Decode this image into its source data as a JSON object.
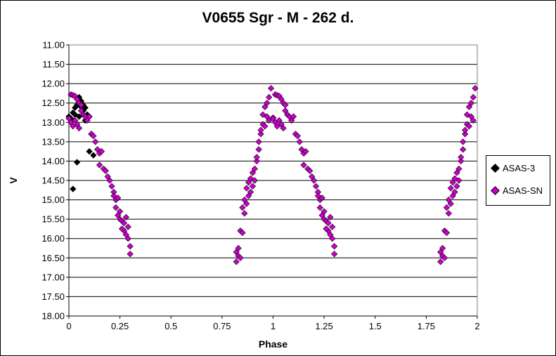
{
  "chart_data": {
    "type": "scatter",
    "title": "V0655 Sgr - M - 262 d.",
    "xlabel": "Phase",
    "ylabel": "V",
    "xlim": [
      0,
      2
    ],
    "ylim": [
      11.0,
      18.0
    ],
    "y_inverted": true,
    "x_ticks": [
      "0",
      "0.25",
      "0.5",
      "0.75",
      "1",
      "1.25",
      "1.5",
      "1.75",
      "2"
    ],
    "y_ticks": [
      "11.00",
      "11.50",
      "12.00",
      "12.50",
      "13.00",
      "13.50",
      "14.00",
      "14.50",
      "15.00",
      "15.50",
      "16.00",
      "16.50",
      "17.00",
      "17.50",
      "18.00"
    ],
    "grid": "horizontal",
    "legend_position": "right",
    "series": [
      {
        "name": "ASAS-3",
        "color": "#000000",
        "marker": "diamond",
        "points": [
          [
            0.0,
            12.85
          ],
          [
            0.01,
            12.9
          ],
          [
            0.02,
            12.75
          ],
          [
            0.03,
            12.62
          ],
          [
            0.03,
            12.8
          ],
          [
            0.04,
            12.55
          ],
          [
            0.04,
            12.4
          ],
          [
            0.05,
            12.35
          ],
          [
            0.05,
            12.48
          ],
          [
            0.06,
            12.6
          ],
          [
            0.06,
            12.45
          ],
          [
            0.07,
            12.55
          ],
          [
            0.07,
            12.7
          ],
          [
            0.08,
            12.62
          ],
          [
            0.09,
            12.8
          ],
          [
            0.1,
            12.85
          ],
          [
            0.05,
            12.85
          ],
          [
            0.08,
            12.95
          ],
          [
            0.1,
            13.75
          ],
          [
            0.12,
            13.85
          ],
          [
            0.11,
            13.3
          ],
          [
            0.04,
            14.03
          ],
          [
            0.02,
            14.72
          ],
          [
            0.01,
            13.0
          ]
        ]
      },
      {
        "name": "ASAS-SN",
        "color": "#CC00CC",
        "marker": "diamond",
        "points": [
          [
            0.0,
            12.9
          ],
          [
            0.01,
            12.28
          ],
          [
            0.01,
            13.0
          ],
          [
            0.02,
            13.1
          ],
          [
            0.02,
            12.3
          ],
          [
            0.03,
            12.32
          ],
          [
            0.03,
            12.95
          ],
          [
            0.04,
            12.4
          ],
          [
            0.04,
            13.05
          ],
          [
            0.05,
            12.5
          ],
          [
            0.05,
            13.15
          ],
          [
            0.06,
            12.55
          ],
          [
            0.06,
            12.7
          ],
          [
            0.07,
            12.8
          ],
          [
            0.08,
            12.85
          ],
          [
            0.09,
            12.95
          ],
          [
            0.1,
            12.85
          ],
          [
            0.11,
            13.3
          ],
          [
            0.12,
            13.35
          ],
          [
            0.13,
            13.5
          ],
          [
            0.14,
            13.7
          ],
          [
            0.15,
            13.8
          ],
          [
            0.15,
            14.1
          ],
          [
            0.16,
            13.75
          ],
          [
            0.17,
            14.2
          ],
          [
            0.18,
            14.25
          ],
          [
            0.19,
            14.4
          ],
          [
            0.2,
            14.5
          ],
          [
            0.21,
            14.65
          ],
          [
            0.22,
            14.8
          ],
          [
            0.22,
            14.9
          ],
          [
            0.23,
            15.0
          ],
          [
            0.23,
            15.2
          ],
          [
            0.24,
            14.95
          ],
          [
            0.24,
            15.4
          ],
          [
            0.25,
            15.5
          ],
          [
            0.25,
            15.3
          ],
          [
            0.26,
            15.55
          ],
          [
            0.27,
            15.6
          ],
          [
            0.27,
            15.8
          ],
          [
            0.28,
            15.45
          ],
          [
            0.28,
            15.9
          ],
          [
            0.29,
            16.0
          ],
          [
            0.29,
            15.7
          ],
          [
            0.3,
            16.2
          ],
          [
            0.3,
            16.4
          ],
          [
            0.26,
            15.75
          ],
          [
            0.82,
            16.6
          ],
          [
            0.82,
            16.35
          ],
          [
            0.83,
            16.45
          ],
          [
            0.83,
            16.25
          ],
          [
            0.84,
            16.5
          ],
          [
            0.84,
            15.8
          ],
          [
            0.85,
            15.85
          ],
          [
            0.85,
            15.2
          ],
          [
            0.86,
            15.0
          ],
          [
            0.86,
            15.35
          ],
          [
            0.87,
            14.7
          ],
          [
            0.87,
            15.1
          ],
          [
            0.88,
            14.55
          ],
          [
            0.88,
            14.9
          ],
          [
            0.89,
            14.45
          ],
          [
            0.89,
            14.8
          ],
          [
            0.9,
            14.3
          ],
          [
            0.9,
            14.65
          ],
          [
            0.91,
            14.5
          ],
          [
            0.91,
            14.2
          ],
          [
            0.92,
            14.0
          ],
          [
            0.92,
            13.9
          ],
          [
            0.93,
            13.7
          ],
          [
            0.93,
            13.5
          ],
          [
            0.94,
            13.3
          ],
          [
            0.94,
            13.2
          ],
          [
            0.95,
            13.05
          ],
          [
            0.95,
            12.8
          ],
          [
            0.96,
            12.6
          ],
          [
            0.96,
            13.1
          ],
          [
            0.97,
            12.5
          ],
          [
            0.97,
            12.85
          ],
          [
            0.98,
            12.35
          ],
          [
            0.98,
            12.95
          ],
          [
            0.99,
            12.12
          ],
          [
            1.0,
            12.88
          ],
          [
            1.0,
            12.9
          ],
          [
            1.01,
            12.28
          ],
          [
            1.01,
            13.0
          ],
          [
            1.02,
            13.1
          ],
          [
            1.02,
            12.3
          ],
          [
            1.03,
            12.32
          ],
          [
            1.03,
            12.95
          ],
          [
            1.04,
            12.4
          ],
          [
            1.04,
            13.05
          ],
          [
            1.05,
            12.5
          ],
          [
            1.05,
            13.15
          ],
          [
            1.06,
            12.55
          ],
          [
            1.06,
            12.7
          ],
          [
            1.07,
            12.8
          ],
          [
            1.08,
            12.85
          ],
          [
            1.09,
            12.95
          ],
          [
            1.1,
            12.85
          ],
          [
            1.11,
            13.3
          ],
          [
            1.12,
            13.35
          ],
          [
            1.13,
            13.5
          ],
          [
            1.14,
            13.7
          ],
          [
            1.15,
            13.8
          ],
          [
            1.15,
            14.1
          ],
          [
            1.16,
            13.75
          ],
          [
            1.17,
            14.2
          ],
          [
            1.18,
            14.25
          ],
          [
            1.19,
            14.4
          ],
          [
            1.2,
            14.5
          ],
          [
            1.21,
            14.65
          ],
          [
            1.22,
            14.8
          ],
          [
            1.22,
            14.9
          ],
          [
            1.23,
            15.0
          ],
          [
            1.23,
            15.2
          ],
          [
            1.24,
            14.95
          ],
          [
            1.24,
            15.4
          ],
          [
            1.25,
            15.5
          ],
          [
            1.25,
            15.3
          ],
          [
            1.26,
            15.55
          ],
          [
            1.27,
            15.6
          ],
          [
            1.27,
            15.8
          ],
          [
            1.28,
            15.45
          ],
          [
            1.28,
            15.9
          ],
          [
            1.29,
            16.0
          ],
          [
            1.29,
            15.7
          ],
          [
            1.3,
            16.2
          ],
          [
            1.3,
            16.4
          ],
          [
            1.26,
            15.75
          ],
          [
            1.82,
            16.6
          ],
          [
            1.82,
            16.35
          ],
          [
            1.83,
            16.45
          ],
          [
            1.83,
            16.25
          ],
          [
            1.84,
            16.5
          ],
          [
            1.84,
            15.8
          ],
          [
            1.85,
            15.85
          ],
          [
            1.85,
            15.2
          ],
          [
            1.86,
            15.0
          ],
          [
            1.86,
            15.35
          ],
          [
            1.87,
            14.7
          ],
          [
            1.87,
            15.1
          ],
          [
            1.88,
            14.55
          ],
          [
            1.88,
            14.9
          ],
          [
            1.89,
            14.45
          ],
          [
            1.89,
            14.8
          ],
          [
            1.9,
            14.3
          ],
          [
            1.9,
            14.65
          ],
          [
            1.91,
            14.5
          ],
          [
            1.91,
            14.2
          ],
          [
            1.92,
            14.0
          ],
          [
            1.92,
            13.9
          ],
          [
            1.93,
            13.7
          ],
          [
            1.93,
            13.5
          ],
          [
            1.94,
            13.3
          ],
          [
            1.94,
            13.2
          ],
          [
            1.95,
            13.05
          ],
          [
            1.95,
            12.8
          ],
          [
            1.96,
            12.6
          ],
          [
            1.96,
            13.1
          ],
          [
            1.97,
            12.5
          ],
          [
            1.97,
            12.85
          ],
          [
            1.98,
            12.35
          ],
          [
            1.98,
            12.95
          ],
          [
            1.99,
            12.12
          ]
        ]
      }
    ]
  }
}
